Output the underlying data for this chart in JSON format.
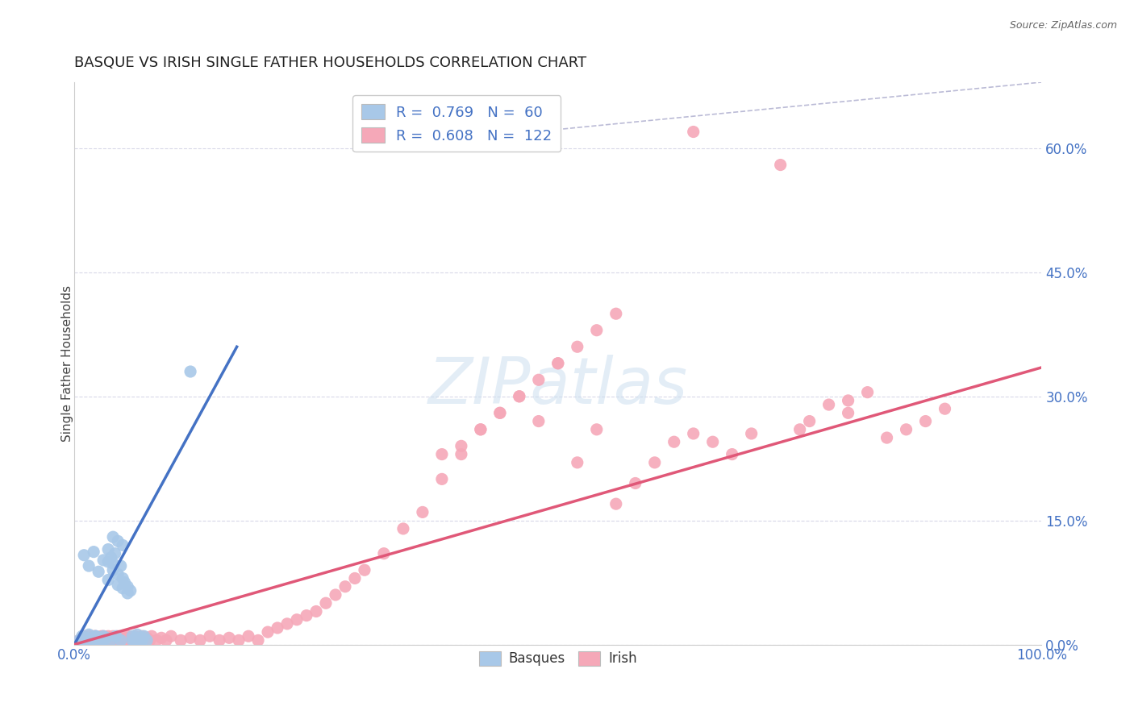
{
  "title": "BASQUE VS IRISH SINGLE FATHER HOUSEHOLDS CORRELATION CHART",
  "source": "Source: ZipAtlas.com",
  "ylabel": "Single Father Households",
  "xlim": [
    0,
    1.0
  ],
  "ylim": [
    0,
    0.68
  ],
  "ytick_right": [
    0.0,
    0.15,
    0.3,
    0.45,
    0.6
  ],
  "ytick_right_labels": [
    "0.0%",
    "15.0%",
    "30.0%",
    "45.0%",
    "60.0%"
  ],
  "basque_color": "#a8c8e8",
  "irish_color": "#f5a8b8",
  "basque_R": 0.769,
  "basque_N": 60,
  "irish_R": 0.608,
  "irish_N": 122,
  "basque_line_color": "#4472c4",
  "irish_line_color": "#e05878",
  "ref_line_color": "#aaaacc",
  "legend_label_basque": "Basques",
  "legend_label_irish": "Irish",
  "background_color": "#ffffff",
  "grid_color": "#d8d8e8",
  "basque_scatter_x": [
    0.005,
    0.008,
    0.01,
    0.012,
    0.015,
    0.015,
    0.018,
    0.02,
    0.02,
    0.022,
    0.025,
    0.025,
    0.028,
    0.03,
    0.03,
    0.032,
    0.035,
    0.035,
    0.038,
    0.04,
    0.04,
    0.042,
    0.045,
    0.045,
    0.048,
    0.05,
    0.05,
    0.052,
    0.055,
    0.058,
    0.06,
    0.06,
    0.062,
    0.065,
    0.065,
    0.068,
    0.07,
    0.07,
    0.072,
    0.075,
    0.01,
    0.015,
    0.02,
    0.025,
    0.03,
    0.035,
    0.04,
    0.045,
    0.05,
    0.055,
    0.008,
    0.012,
    0.018,
    0.022,
    0.028,
    0.033,
    0.038,
    0.043,
    0.048,
    0.12
  ],
  "basque_scatter_y": [
    0.005,
    0.01,
    0.005,
    0.008,
    0.005,
    0.012,
    0.005,
    0.008,
    0.005,
    0.01,
    0.005,
    0.008,
    0.005,
    0.01,
    0.005,
    0.008,
    0.1,
    0.115,
    0.105,
    0.09,
    0.13,
    0.11,
    0.085,
    0.125,
    0.095,
    0.08,
    0.12,
    0.075,
    0.07,
    0.065,
    0.005,
    0.01,
    0.005,
    0.008,
    0.012,
    0.005,
    0.008,
    0.005,
    0.01,
    0.005,
    0.108,
    0.095,
    0.112,
    0.088,
    0.102,
    0.078,
    0.098,
    0.072,
    0.068,
    0.062,
    0.005,
    0.008,
    0.005,
    0.01,
    0.005,
    0.008,
    0.005,
    0.01,
    0.005,
    0.33
  ],
  "irish_scatter_x": [
    0.005,
    0.008,
    0.01,
    0.01,
    0.012,
    0.012,
    0.015,
    0.015,
    0.015,
    0.018,
    0.018,
    0.02,
    0.02,
    0.02,
    0.022,
    0.022,
    0.025,
    0.025,
    0.025,
    0.028,
    0.028,
    0.03,
    0.03,
    0.03,
    0.032,
    0.032,
    0.035,
    0.035,
    0.038,
    0.038,
    0.04,
    0.04,
    0.04,
    0.042,
    0.042,
    0.045,
    0.045,
    0.048,
    0.048,
    0.05,
    0.05,
    0.052,
    0.055,
    0.055,
    0.058,
    0.06,
    0.06,
    0.062,
    0.065,
    0.065,
    0.068,
    0.07,
    0.072,
    0.075,
    0.078,
    0.08,
    0.085,
    0.09,
    0.095,
    0.1,
    0.11,
    0.12,
    0.13,
    0.14,
    0.15,
    0.16,
    0.17,
    0.18,
    0.19,
    0.2,
    0.21,
    0.22,
    0.23,
    0.24,
    0.25,
    0.26,
    0.27,
    0.28,
    0.29,
    0.3,
    0.32,
    0.34,
    0.36,
    0.38,
    0.4,
    0.42,
    0.44,
    0.46,
    0.48,
    0.5,
    0.52,
    0.54,
    0.56,
    0.38,
    0.4,
    0.42,
    0.44,
    0.46,
    0.48,
    0.5,
    0.52,
    0.54,
    0.56,
    0.58,
    0.6,
    0.62,
    0.64,
    0.66,
    0.68,
    0.7,
    0.75,
    0.8,
    0.64,
    0.73,
    0.76,
    0.78,
    0.8,
    0.82,
    0.84,
    0.86,
    0.88,
    0.9
  ],
  "irish_scatter_y": [
    0.005,
    0.008,
    0.005,
    0.01,
    0.005,
    0.008,
    0.005,
    0.01,
    0.005,
    0.008,
    0.005,
    0.01,
    0.005,
    0.008,
    0.005,
    0.01,
    0.005,
    0.008,
    0.005,
    0.01,
    0.005,
    0.008,
    0.005,
    0.01,
    0.005,
    0.008,
    0.005,
    0.01,
    0.005,
    0.008,
    0.005,
    0.01,
    0.005,
    0.008,
    0.005,
    0.01,
    0.005,
    0.008,
    0.005,
    0.01,
    0.005,
    0.008,
    0.005,
    0.01,
    0.005,
    0.008,
    0.005,
    0.01,
    0.005,
    0.008,
    0.005,
    0.01,
    0.005,
    0.008,
    0.005,
    0.01,
    0.005,
    0.008,
    0.005,
    0.01,
    0.005,
    0.008,
    0.005,
    0.01,
    0.005,
    0.008,
    0.005,
    0.01,
    0.005,
    0.015,
    0.02,
    0.025,
    0.03,
    0.035,
    0.04,
    0.05,
    0.06,
    0.07,
    0.08,
    0.09,
    0.11,
    0.14,
    0.16,
    0.2,
    0.23,
    0.26,
    0.28,
    0.3,
    0.27,
    0.34,
    0.36,
    0.38,
    0.4,
    0.23,
    0.24,
    0.26,
    0.28,
    0.3,
    0.32,
    0.34,
    0.22,
    0.26,
    0.17,
    0.195,
    0.22,
    0.245,
    0.255,
    0.245,
    0.23,
    0.255,
    0.26,
    0.28,
    0.62,
    0.58,
    0.27,
    0.29,
    0.295,
    0.305,
    0.25,
    0.26,
    0.27,
    0.285
  ],
  "basque_line_x": [
    0.0,
    0.168
  ],
  "basque_line_y": [
    0.0,
    0.36
  ],
  "irish_line_x": [
    0.0,
    1.0
  ],
  "irish_line_y": [
    0.0,
    0.335
  ],
  "ref_line_x": [
    0.3,
    1.0
  ],
  "ref_line_y": [
    0.6,
    0.68
  ]
}
